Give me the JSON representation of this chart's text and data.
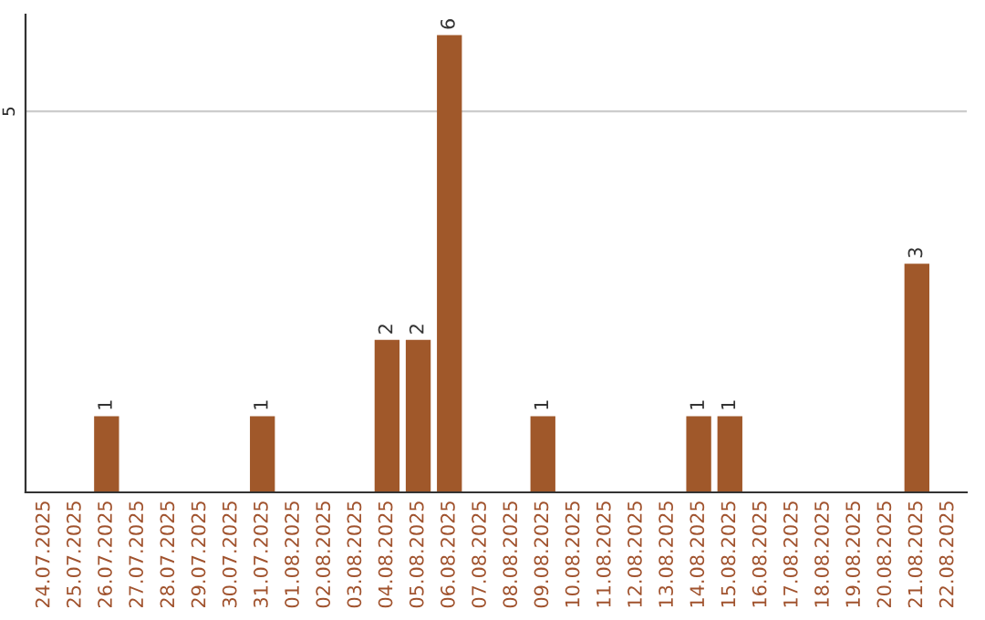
{
  "chart_data": {
    "type": "bar",
    "categories": [
      "24.07.2025",
      "25.07.2025",
      "26.07.2025",
      "27.07.2025",
      "28.07.2025",
      "29.07.2025",
      "30.07.2025",
      "31.07.2025",
      "01.08.2025",
      "02.08.2025",
      "03.08.2025",
      "04.08.2025",
      "05.08.2025",
      "06.08.2025",
      "07.08.2025",
      "08.08.2025",
      "09.08.2025",
      "10.08.2025",
      "11.08.2025",
      "12.08.2025",
      "13.08.2025",
      "14.08.2025",
      "15.08.2025",
      "16.08.2025",
      "17.08.2025",
      "18.08.2025",
      "19.08.2025",
      "20.08.2025",
      "21.08.2025",
      "22.08.2025"
    ],
    "values": [
      0,
      0,
      1,
      0,
      0,
      0,
      0,
      1,
      0,
      0,
      0,
      2,
      2,
      6,
      0,
      0,
      1,
      0,
      0,
      0,
      0,
      1,
      1,
      0,
      0,
      0,
      0,
      0,
      3,
      0
    ],
    "value_labels": [
      null,
      null,
      "1",
      null,
      null,
      null,
      null,
      "1",
      null,
      null,
      null,
      "2",
      "2",
      "6",
      null,
      null,
      "1",
      null,
      null,
      null,
      null,
      "1",
      "1",
      null,
      null,
      null,
      null,
      null,
      "3",
      null
    ],
    "color": "#a0582a",
    "ylim": [
      0,
      6.27
    ],
    "yticks": [
      5
    ],
    "grid": "y",
    "legend": false
  }
}
